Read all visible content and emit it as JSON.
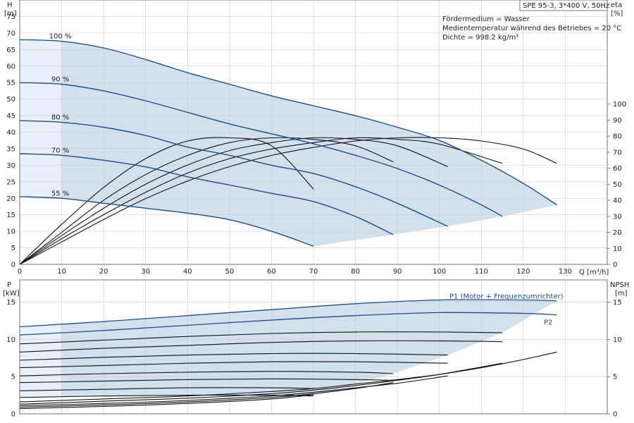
{
  "product_label": "SPE 95-3, 3*400 V, 50Hz",
  "info_lines": [
    "Fördermedium = Wasser",
    "Medientemperatur während des Betriebes = 20 °C",
    "Dichte = 998.2 kg/m³"
  ],
  "colors": {
    "fill": "#d3e1ef",
    "fill_light": "#e8f1fb",
    "curve_blue": "#1f4e8c",
    "curve_black": "#111111",
    "grid": "#cccccc",
    "frame": "#555555"
  },
  "chart_data": [
    {
      "type": "line",
      "panel": "head-efficiency",
      "ylabel_left": "H",
      "yunit_left": "[m]",
      "ylabel_right": "eta",
      "yunit_right": "[%]",
      "xlabel": "Q [m³/h]",
      "xlim": [
        0,
        140
      ],
      "ylim": [
        0,
        80
      ],
      "eta_lim": [
        0,
        165
      ],
      "x_ticks": [
        0,
        10,
        20,
        30,
        40,
        50,
        60,
        70,
        80,
        90,
        100,
        110,
        120,
        130
      ],
      "y_ticks": [
        0,
        5,
        10,
        15,
        20,
        25,
        30,
        35,
        40,
        45,
        50,
        55,
        60,
        65,
        70,
        75
      ],
      "eta_ticks": [
        0,
        10,
        20,
        30,
        40,
        50,
        60,
        70,
        80,
        90,
        100
      ],
      "grid": true,
      "head_curves": [
        {
          "name": "100 %",
          "x": [
            0,
            10,
            20,
            30,
            40,
            50,
            60,
            70,
            80,
            90,
            100,
            110,
            120,
            128
          ],
          "y": [
            68,
            67.5,
            65.5,
            62,
            58,
            54.5,
            51,
            48,
            45,
            41.5,
            37.5,
            31.5,
            24.5,
            18
          ]
        },
        {
          "name": "90 %",
          "x": [
            0,
            10,
            20,
            30,
            40,
            50,
            60,
            70,
            80,
            90,
            100,
            110,
            115
          ],
          "y": [
            55,
            54.5,
            52.5,
            49.5,
            46,
            42.5,
            39.5,
            36.5,
            33,
            29,
            24,
            18,
            14.5
          ]
        },
        {
          "name": "80 %",
          "x": [
            0,
            10,
            20,
            30,
            40,
            50,
            60,
            70,
            80,
            90,
            102
          ],
          "y": [
            43.5,
            43,
            41.5,
            39,
            35.5,
            33,
            30,
            27.5,
            23.5,
            18.5,
            11.5
          ]
        },
        {
          "name": "70 %",
          "x": [
            0,
            10,
            20,
            30,
            40,
            50,
            60,
            70,
            80,
            89
          ],
          "y": [
            33.5,
            33,
            31.5,
            29.5,
            26.5,
            24,
            21.5,
            19,
            14.5,
            9
          ]
        },
        {
          "name": "55 %",
          "x": [
            0,
            10,
            20,
            30,
            40,
            50,
            60,
            70
          ],
          "y": [
            20.5,
            20,
            18.5,
            17,
            15.5,
            13.5,
            10,
            5.5
          ]
        }
      ],
      "efficiency_curves_eta": [
        {
          "x": [
            0,
            10,
            20,
            30,
            40,
            50,
            60,
            70
          ],
          "y": [
            0,
            25,
            48,
            66,
            77,
            79,
            74,
            47
          ]
        },
        {
          "x": [
            0,
            10,
            20,
            30,
            40,
            50,
            60,
            70,
            80,
            89
          ],
          "y": [
            0,
            20,
            40,
            56,
            68,
            76,
            79,
            78,
            74,
            64
          ]
        },
        {
          "x": [
            0,
            10,
            20,
            30,
            40,
            50,
            60,
            70,
            80,
            90,
            102
          ],
          "y": [
            0,
            18,
            35,
            50,
            62,
            71,
            76,
            79,
            78,
            74,
            61
          ]
        },
        {
          "x": [
            0,
            10,
            20,
            30,
            40,
            50,
            60,
            70,
            80,
            90,
            100,
            115
          ],
          "y": [
            0,
            16,
            31,
            45,
            57,
            66,
            72,
            76,
            79,
            78,
            75,
            63
          ]
        },
        {
          "x": [
            0,
            10,
            20,
            30,
            40,
            50,
            60,
            70,
            80,
            90,
            100,
            110,
            120,
            128
          ],
          "y": [
            0,
            14,
            28,
            41,
            52,
            61,
            68,
            73,
            77,
            79,
            79,
            77,
            72,
            63
          ]
        }
      ]
    },
    {
      "type": "line",
      "panel": "power-npsh",
      "ylabel_left": "P",
      "yunit_left": "[kW]",
      "ylabel_right": "NPSH",
      "yunit_right": "[m]",
      "xlim": [
        0,
        140
      ],
      "ylim": [
        0,
        18
      ],
      "x_ticks": [
        0,
        10,
        20,
        30,
        40,
        50,
        60,
        70,
        80,
        90,
        100,
        110,
        120,
        130
      ],
      "y_ticks": [
        0,
        5,
        10,
        15
      ],
      "npsh_ticks": [
        0,
        5,
        10,
        15
      ],
      "grid": true,
      "power_curves": [
        {
          "name": "P1 (Motor + Frequenzumrichter)",
          "x": [
            0,
            20,
            40,
            60,
            80,
            100,
            120,
            128
          ],
          "y": [
            11.7,
            12.4,
            13.2,
            14.0,
            14.8,
            15.3,
            15.3,
            15.2
          ]
        },
        {
          "name": "P2",
          "x": [
            0,
            20,
            40,
            60,
            80,
            100,
            120,
            128
          ],
          "y": [
            10.6,
            11.2,
            11.9,
            12.6,
            13.2,
            13.6,
            13.5,
            13.3
          ]
        },
        {
          "x": [
            0,
            20,
            40,
            60,
            80,
            100,
            115
          ],
          "y": [
            9.4,
            9.9,
            10.4,
            10.8,
            11.0,
            11.0,
            10.9
          ]
        },
        {
          "x": [
            0,
            20,
            40,
            60,
            80,
            100,
            115
          ],
          "y": [
            8.3,
            8.8,
            9.2,
            9.6,
            9.8,
            9.8,
            9.7
          ]
        },
        {
          "x": [
            0,
            20,
            40,
            60,
            80,
            102
          ],
          "y": [
            7.2,
            7.6,
            7.9,
            8.1,
            8.1,
            7.9
          ]
        },
        {
          "x": [
            0,
            20,
            40,
            60,
            80,
            102
          ],
          "y": [
            6.2,
            6.5,
            6.8,
            7.0,
            7.0,
            6.8
          ]
        },
        {
          "x": [
            0,
            20,
            40,
            60,
            80,
            89
          ],
          "y": [
            5.1,
            5.4,
            5.6,
            5.7,
            5.6,
            5.4
          ]
        },
        {
          "x": [
            0,
            20,
            40,
            60,
            80,
            89
          ],
          "y": [
            4.2,
            4.4,
            4.6,
            4.7,
            4.6,
            4.5
          ]
        },
        {
          "x": [
            0,
            20,
            40,
            60,
            70
          ],
          "y": [
            3.1,
            3.3,
            3.5,
            3.5,
            3.4
          ]
        },
        {
          "x": [
            0,
            20,
            40,
            60,
            70
          ],
          "y": [
            2.2,
            2.4,
            2.5,
            2.5,
            2.4
          ]
        }
      ],
      "npsh_curves": [
        {
          "x": [
            0,
            20,
            40,
            60,
            70,
            80,
            90,
            100,
            110,
            120,
            128
          ],
          "y": [
            1.6,
            2.0,
            2.4,
            3.0,
            3.4,
            4.0,
            4.6,
            5.3,
            6.2,
            7.3,
            8.3
          ]
        },
        {
          "x": [
            0,
            20,
            40,
            60,
            70,
            80,
            90,
            100,
            115
          ],
          "y": [
            1.3,
            1.7,
            2.1,
            2.7,
            3.2,
            3.8,
            4.5,
            5.3,
            6.8
          ]
        },
        {
          "x": [
            0,
            20,
            40,
            60,
            70,
            80,
            90,
            102
          ],
          "y": [
            1.1,
            1.4,
            1.8,
            2.4,
            2.9,
            3.5,
            4.1,
            5.1
          ]
        },
        {
          "x": [
            0,
            20,
            40,
            60,
            70,
            80,
            89
          ],
          "y": [
            0.9,
            1.2,
            1.6,
            2.2,
            2.7,
            3.4,
            4.2
          ]
        },
        {
          "x": [
            0,
            20,
            40,
            60,
            70
          ],
          "y": [
            0.7,
            1.0,
            1.4,
            2.0,
            2.6
          ]
        }
      ]
    }
  ]
}
